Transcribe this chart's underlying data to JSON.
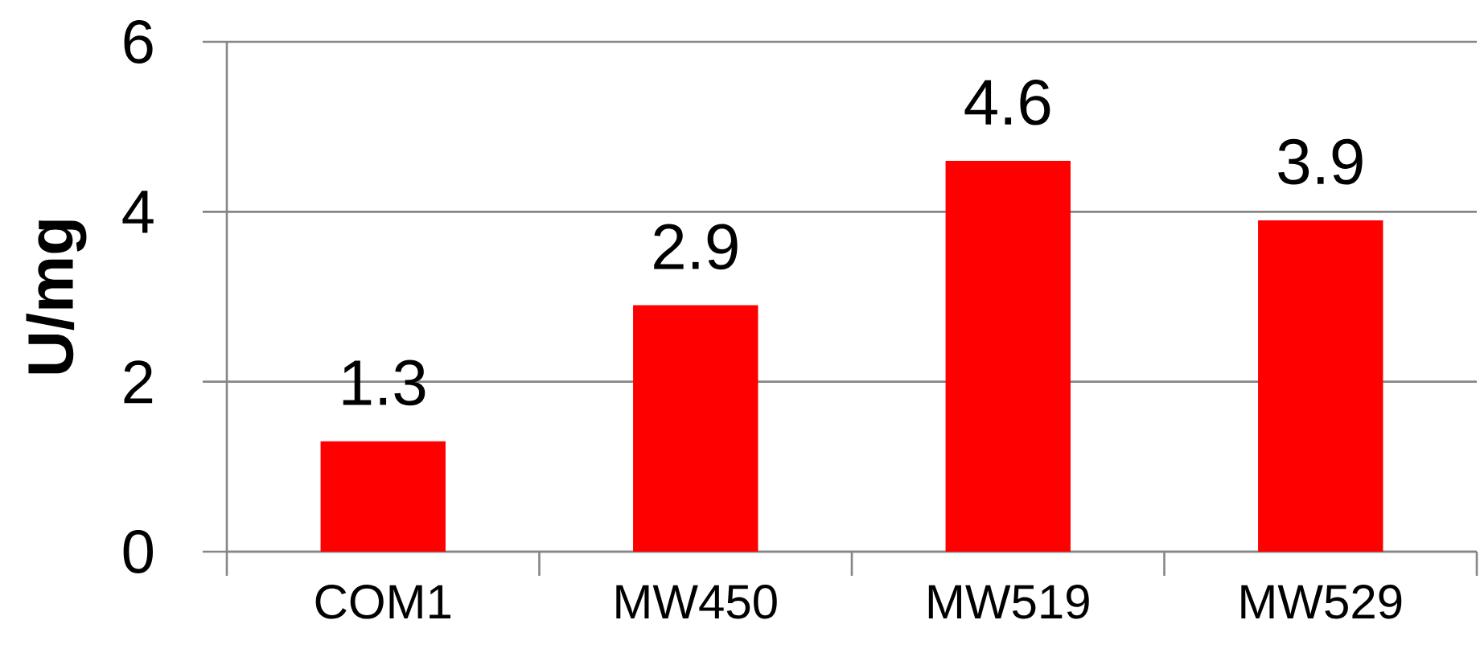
{
  "chart_data": {
    "type": "bar",
    "ylabel": "U/mg",
    "categories": [
      "COM1",
      "MW450",
      "MW519",
      "MW529"
    ],
    "values": [
      1.3,
      2.9,
      4.6,
      3.9
    ],
    "color": "#ff0000",
    "ylim": [
      0,
      6
    ],
    "yticks": [
      0,
      2,
      4,
      6
    ],
    "grid": "y",
    "data_labels": true
  }
}
